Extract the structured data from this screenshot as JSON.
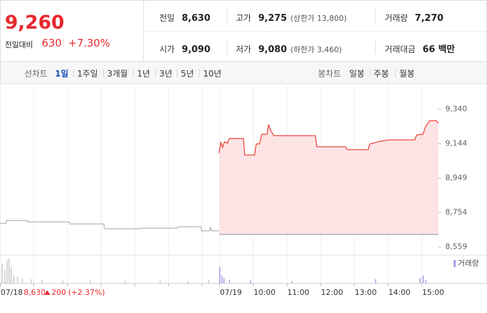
{
  "header": {
    "price": "9,260",
    "change_label": "전일대비",
    "change": "630",
    "change_pct": "+7.30%",
    "stats": [
      {
        "label": "전일",
        "value": "8,630"
      },
      {
        "label": "고가",
        "value": "9,275",
        "note": "(상한가 13,800)"
      },
      {
        "label": "거래량",
        "value": "7,270"
      },
      {
        "label": "시가",
        "value": "9,090"
      },
      {
        "label": "저가",
        "value": "9,080",
        "note": "(하한가 3,460)"
      },
      {
        "label": "거래대금",
        "value": "66 백만"
      }
    ]
  },
  "tabs": {
    "line_label": "선차트",
    "line": [
      "1일",
      "1주일",
      "3개월",
      "1년",
      "3년",
      "5년",
      "10년"
    ],
    "candle_label": "봉차트",
    "candle": [
      "일봉",
      "주봉",
      "월봉"
    ]
  },
  "chart_data": {
    "type": "line",
    "xlim": [
      2.5,
      15.5
    ],
    "xticks": [
      {
        "value": 2.5,
        "label": "07/18"
      },
      {
        "value": 9,
        "label": "07/19"
      },
      {
        "value": 10,
        "label": "10:00"
      },
      {
        "value": 11,
        "label": "11:00"
      },
      {
        "value": 12,
        "label": "12:00"
      },
      {
        "value": 13,
        "label": "13:00"
      },
      {
        "value": 14,
        "label": "14:00"
      },
      {
        "value": 15,
        "label": "15:00"
      }
    ],
    "xgrid": [
      3.5,
      4.5,
      5.5,
      6.5,
      7.5,
      8.5
    ],
    "ylim": [
      8559,
      9340
    ],
    "yticks": [
      {
        "value": 9340,
        "label": "9,340"
      },
      {
        "value": 9144,
        "label": "9,144"
      },
      {
        "value": 8949,
        "label": "8,949"
      },
      {
        "value": 8754,
        "label": "8,754"
      },
      {
        "value": 8559,
        "label": "8,559"
      }
    ],
    "baseline": 8630,
    "volume_lim": [
      0,
      40
    ],
    "prev_close": "8,630",
    "prev_change": "200",
    "prev_change_pct": "(+2.37%)",
    "series": [
      {
        "color": "#b4b4b4",
        "x": [
          2.5,
          2.68,
          2.7,
          3.3,
          3.32,
          4.55,
          4.57,
          5.58,
          5.6,
          6.62,
          6.64,
          7.75,
          7.77,
          8.46,
          8.48,
          8.72,
          8.74,
          8.78,
          9.0
        ],
        "values": [
          8693,
          8693,
          8709,
          8709,
          8701,
          8701,
          8689,
          8689,
          8662,
          8662,
          8665,
          8665,
          8673,
          8673,
          8650,
          8650,
          8670,
          8650,
          8650
        ]
      },
      {
        "color": "#f0463c",
        "fill": "#fde4e4",
        "x": [
          9.0,
          9.05,
          9.1,
          9.16,
          9.25,
          9.3,
          9.72,
          9.76,
          10.05,
          10.1,
          10.2,
          10.26,
          10.42,
          10.47,
          10.52,
          10.62,
          11.85,
          11.9,
          12.75,
          12.8,
          13.42,
          13.47,
          13.8,
          14.05,
          14.8,
          14.86,
          15.05,
          15.12,
          15.25,
          15.44,
          15.5
        ],
        "values": [
          9090,
          9155,
          9123,
          9155,
          9147,
          9174,
          9174,
          9080,
          9080,
          9143,
          9143,
          9198,
          9198,
          9253,
          9222,
          9190,
          9190,
          9127,
          9127,
          9111,
          9111,
          9143,
          9159,
          9166,
          9166,
          9194,
          9198,
          9241,
          9275,
          9275,
          9260
        ]
      },
      {
        "type": "bar",
        "color": "#c8c8c8",
        "x": [
          2.56,
          2.64,
          2.71,
          2.77,
          2.83,
          2.91,
          3.02,
          3.16,
          3.43,
          3.74,
          4.36,
          5.18,
          6.21,
          7.25,
          8.07,
          8.69
        ],
        "values": [
          30,
          20,
          35,
          38,
          25,
          12,
          10,
          8,
          6,
          5,
          4,
          4,
          3,
          4,
          3,
          5
        ]
      },
      {
        "type": "bar",
        "name": "거래량",
        "color": "#a99de6",
        "x": [
          9.02,
          9.08,
          9.14,
          9.31,
          9.93,
          11.17,
          13.64,
          14.96,
          15.05,
          15.13
        ],
        "values": [
          25,
          12,
          8,
          5,
          4,
          3,
          6,
          8,
          12,
          5
        ]
      }
    ]
  }
}
